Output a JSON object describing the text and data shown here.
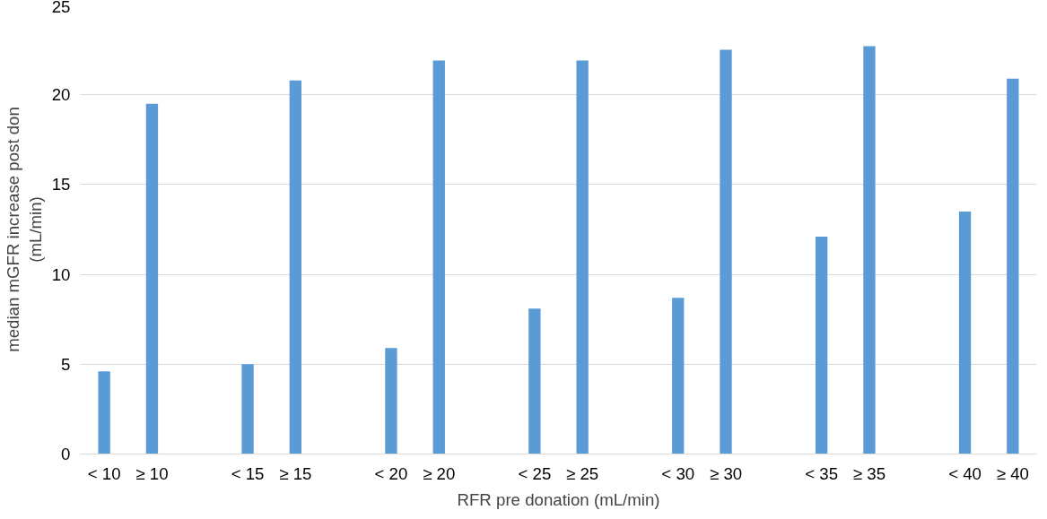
{
  "chart_data": {
    "type": "bar",
    "xlabel": "RFR pre donation (mL/min)",
    "ylabel": "median mGFR increase post don\n(mL/min)",
    "categories": [
      "< 10",
      "≥ 10",
      null,
      "< 15",
      "≥ 15",
      null,
      "< 20",
      "≥ 20",
      null,
      "< 25",
      "≥ 25",
      null,
      "< 30",
      "≥ 30",
      null,
      "< 35",
      "≥ 35",
      null,
      "< 40",
      "≥ 40"
    ],
    "values": [
      4.6,
      19.5,
      null,
      5.0,
      20.8,
      null,
      5.9,
      21.9,
      null,
      8.1,
      21.9,
      null,
      8.7,
      22.5,
      null,
      12.1,
      22.7,
      null,
      13.5,
      20.9
    ],
    "color": "#5b9bd5",
    "ylim": [
      0,
      25
    ],
    "yticks": [
      0,
      5,
      10,
      15,
      20,
      25
    ],
    "grid": "y"
  }
}
